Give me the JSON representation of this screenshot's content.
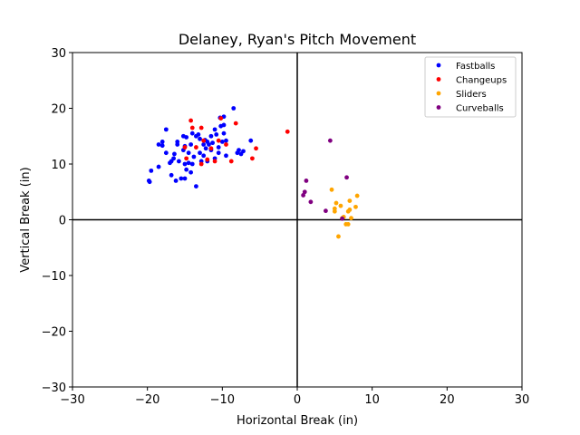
{
  "chart_data": {
    "type": "scatter",
    "title": "Delaney, Ryan's Pitch Movement",
    "xlabel": "Horizontal Break (in)",
    "ylabel": "Vertical Break (in)",
    "xlim": [
      -30,
      30
    ],
    "ylim": [
      -30,
      30
    ],
    "xticks": [
      -30,
      -20,
      -10,
      0,
      10,
      20,
      30
    ],
    "yticks": [
      -30,
      -20,
      -10,
      0,
      10,
      20,
      30
    ],
    "tick_labels_x": [
      "−30",
      "−20",
      "−10",
      "0",
      "10",
      "20",
      "30"
    ],
    "tick_labels_y": [
      "−30",
      "−20",
      "−10",
      "0",
      "10",
      "20",
      "30"
    ],
    "grid": false,
    "legend_position": "upper-right",
    "series": [
      {
        "name": "Fastballs",
        "color": "#0000ff",
        "points": [
          [
            -19.8,
            7.0
          ],
          [
            -19.7,
            6.8
          ],
          [
            -19.5,
            8.8
          ],
          [
            -18.5,
            9.5
          ],
          [
            -18.5,
            13.5
          ],
          [
            -18.0,
            13.3
          ],
          [
            -18.0,
            14.0
          ],
          [
            -17.5,
            16.2
          ],
          [
            -17.5,
            12.0
          ],
          [
            -17.0,
            10.2
          ],
          [
            -16.8,
            10.5
          ],
          [
            -16.8,
            8.0
          ],
          [
            -16.5,
            11.0
          ],
          [
            -16.4,
            11.8
          ],
          [
            -16.2,
            7.0
          ],
          [
            -16.0,
            14.0
          ],
          [
            -16.0,
            13.5
          ],
          [
            -15.8,
            10.5
          ],
          [
            -15.5,
            7.4
          ],
          [
            -15.2,
            15.0
          ],
          [
            -15.2,
            12.5
          ],
          [
            -15.0,
            13.2
          ],
          [
            -15.0,
            10.0
          ],
          [
            -15.0,
            7.4
          ],
          [
            -14.8,
            9.0
          ],
          [
            -14.8,
            14.8
          ],
          [
            -14.5,
            12.0
          ],
          [
            -14.5,
            10.2
          ],
          [
            -14.2,
            8.5
          ],
          [
            -14.2,
            13.5
          ],
          [
            -14.0,
            15.5
          ],
          [
            -14.0,
            10.0
          ],
          [
            -13.8,
            11.3
          ],
          [
            -13.5,
            6.0
          ],
          [
            -13.5,
            15.0
          ],
          [
            -13.2,
            15.3
          ],
          [
            -13.0,
            14.5
          ],
          [
            -13.0,
            12.0
          ],
          [
            -12.8,
            10.5
          ],
          [
            -12.5,
            13.5
          ],
          [
            -12.5,
            11.5
          ],
          [
            -12.3,
            14.3
          ],
          [
            -12.2,
            12.8
          ],
          [
            -12.0,
            14.0
          ],
          [
            -12.0,
            10.5
          ],
          [
            -11.8,
            13.5
          ],
          [
            -11.5,
            15.0
          ],
          [
            -11.5,
            12.5
          ],
          [
            -11.3,
            13.8
          ],
          [
            -11.0,
            16.2
          ],
          [
            -11.0,
            11.0
          ],
          [
            -10.8,
            15.3
          ],
          [
            -10.5,
            13.0
          ],
          [
            -10.5,
            12.0
          ],
          [
            -10.3,
            18.3
          ],
          [
            -10.2,
            16.8
          ],
          [
            -10.0,
            14.0
          ],
          [
            -9.8,
            17.0
          ],
          [
            -9.8,
            15.5
          ],
          [
            -9.8,
            18.5
          ],
          [
            -9.5,
            14.2
          ],
          [
            -9.5,
            11.5
          ],
          [
            -8.5,
            20.0
          ],
          [
            -8.0,
            12.0
          ],
          [
            -7.8,
            12.5
          ],
          [
            -7.5,
            11.8
          ],
          [
            -7.2,
            12.3
          ],
          [
            -6.2,
            14.2
          ]
        ]
      },
      {
        "name": "Changeups",
        "color": "#ff0000",
        "points": [
          [
            -15.0,
            13.0
          ],
          [
            -14.8,
            11.0
          ],
          [
            -14.2,
            17.8
          ],
          [
            -14.0,
            16.5
          ],
          [
            -13.5,
            13.0
          ],
          [
            -12.8,
            16.5
          ],
          [
            -12.8,
            10.0
          ],
          [
            -12.5,
            14.2
          ],
          [
            -12.0,
            10.8
          ],
          [
            -11.5,
            12.8
          ],
          [
            -11.0,
            10.5
          ],
          [
            -10.5,
            14.2
          ],
          [
            -10.2,
            18.2
          ],
          [
            -9.5,
            13.5
          ],
          [
            -8.8,
            10.5
          ],
          [
            -8.2,
            17.3
          ],
          [
            -6.0,
            11.0
          ],
          [
            -5.5,
            12.8
          ],
          [
            -1.3,
            15.8
          ]
        ]
      },
      {
        "name": "Sliders",
        "color": "#ffa500",
        "points": [
          [
            4.6,
            5.4
          ],
          [
            5.0,
            1.5
          ],
          [
            5.0,
            2.0
          ],
          [
            5.2,
            3.0
          ],
          [
            5.5,
            -3.0
          ],
          [
            5.8,
            2.5
          ],
          [
            6.0,
            0.3
          ],
          [
            6.2,
            0.5
          ],
          [
            6.5,
            -0.8
          ],
          [
            6.8,
            1.5
          ],
          [
            6.8,
            -0.8
          ],
          [
            7.0,
            3.4
          ],
          [
            7.0,
            1.8
          ],
          [
            7.2,
            0.3
          ],
          [
            7.8,
            2.3
          ],
          [
            8.0,
            4.3
          ]
        ]
      },
      {
        "name": "Curveballs",
        "color": "#800080",
        "points": [
          [
            0.8,
            4.4
          ],
          [
            1.0,
            5.0
          ],
          [
            1.2,
            7.0
          ],
          [
            1.8,
            3.2
          ],
          [
            3.8,
            1.6
          ],
          [
            4.4,
            14.2
          ],
          [
            6.0,
            0.2
          ],
          [
            6.6,
            7.6
          ]
        ]
      }
    ]
  }
}
